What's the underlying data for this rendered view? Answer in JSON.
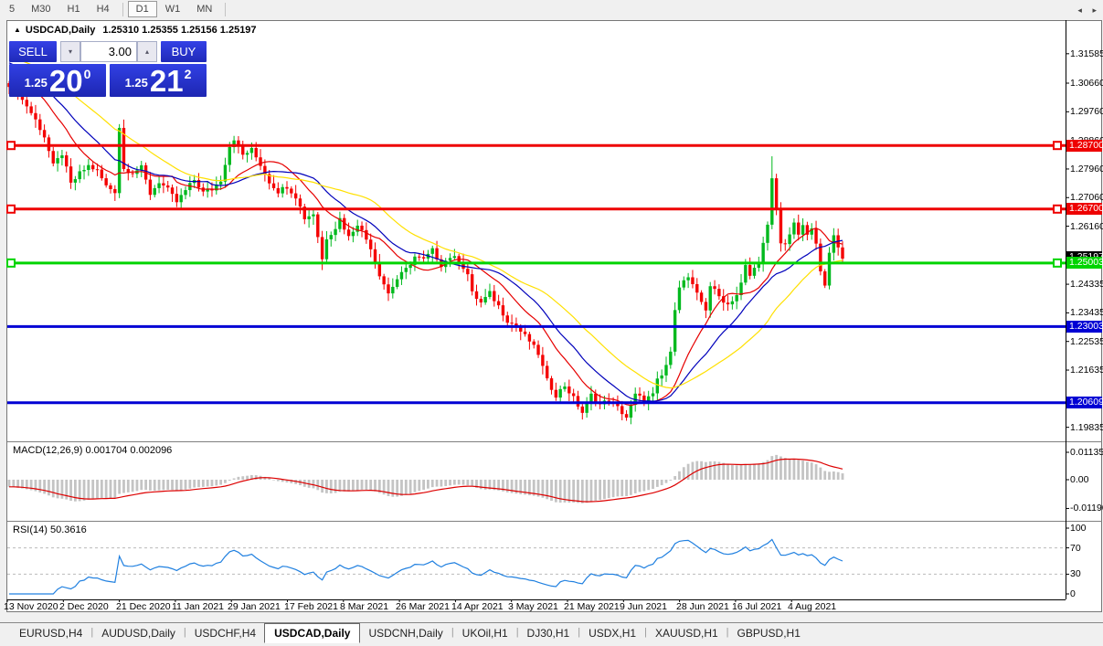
{
  "toolbar": {
    "items": [
      {
        "label": "5"
      },
      {
        "label": "M30"
      },
      {
        "label": "H1"
      },
      {
        "label": "H4"
      },
      {
        "separator": true
      },
      {
        "label": "D1",
        "active": true
      },
      {
        "label": "W1"
      },
      {
        "label": "MN"
      },
      {
        "separator": true
      }
    ]
  },
  "chart": {
    "title": "USDCAD,Daily",
    "ohlc": "1.25310 1.25355 1.25156 1.25197",
    "trade_panel": {
      "sell_label": "SELL",
      "buy_label": "BUY",
      "volume": "3.00",
      "down_glyph": "▾",
      "up_glyph": "▴",
      "sell_price": {
        "prefix": "1.25",
        "big": "20",
        "sup": "0"
      },
      "buy_price": {
        "prefix": "1.25",
        "big": "21",
        "sup": "2"
      }
    }
  },
  "chart_data": {
    "type": "candlestick",
    "symbol": "USDCAD",
    "timeframe": "Daily",
    "bars": 190,
    "y_ticks": [
      "1.31585",
      "1.30660",
      "1.29760",
      "1.28860",
      "1.27960",
      "1.27060",
      "1.26160",
      "1.24335",
      "1.23435",
      "1.22535",
      "1.21635",
      "1.19835"
    ],
    "date_labels": [
      "13 Nov 2020",
      "2 Dec 2020",
      "21 Dec 2020",
      "11 Jan 2021",
      "29 Jan 2021",
      "17 Feb 2021",
      "8 Mar 2021",
      "26 Mar 2021",
      "14 Apr 2021",
      "3 May 2021",
      "21 May 2021",
      "9 Jun 2021",
      "28 Jun 2021",
      "16 Jul 2021",
      "4 Aug 2021"
    ],
    "close_keypoints": [
      [
        0,
        1.3062
      ],
      [
        2,
        1.303
      ],
      [
        4,
        1.2995
      ],
      [
        6,
        1.295
      ],
      [
        8,
        1.2898
      ],
      [
        10,
        1.2806
      ],
      [
        12,
        1.2844
      ],
      [
        14,
        1.2748
      ],
      [
        16,
        1.2782
      ],
      [
        18,
        1.2806
      ],
      [
        20,
        1.279
      ],
      [
        22,
        1.2742
      ],
      [
        24,
        1.2726
      ],
      [
        25,
        1.2928
      ],
      [
        26,
        1.2796
      ],
      [
        28,
        1.2786
      ],
      [
        30,
        1.28
      ],
      [
        32,
        1.2718
      ],
      [
        34,
        1.2756
      ],
      [
        36,
        1.273
      ],
      [
        38,
        1.2692
      ],
      [
        40,
        1.2728
      ],
      [
        42,
        1.2762
      ],
      [
        44,
        1.2722
      ],
      [
        46,
        1.2732
      ],
      [
        48,
        1.2762
      ],
      [
        50,
        1.2868
      ],
      [
        51,
        1.2892
      ],
      [
        53,
        1.284
      ],
      [
        55,
        1.2856
      ],
      [
        57,
        1.281
      ],
      [
        59,
        1.2756
      ],
      [
        61,
        1.2726
      ],
      [
        63,
        1.2742
      ],
      [
        65,
        1.271
      ],
      [
        67,
        1.2642
      ],
      [
        69,
        1.2656
      ],
      [
        71,
        1.2512
      ],
      [
        72,
        1.258
      ],
      [
        74,
        1.2612
      ],
      [
        75,
        1.264
      ],
      [
        77,
        1.2582
      ],
      [
        79,
        1.2625
      ],
      [
        82,
        1.255
      ],
      [
        84,
        1.2465
      ],
      [
        86,
        1.2405
      ],
      [
        88,
        1.245
      ],
      [
        90,
        1.248
      ],
      [
        92,
        1.252
      ],
      [
        94,
        1.251
      ],
      [
        96,
        1.254
      ],
      [
        98,
        1.2495
      ],
      [
        100,
        1.252
      ],
      [
        102,
        1.251
      ],
      [
        104,
        1.2465
      ],
      [
        105,
        1.2405
      ],
      [
        107,
        1.2375
      ],
      [
        109,
        1.2405
      ],
      [
        111,
        1.2365
      ],
      [
        113,
        1.232
      ],
      [
        115,
        1.23
      ],
      [
        116,
        1.2285
      ],
      [
        118,
        1.2255
      ],
      [
        120,
        1.2215
      ],
      [
        122,
        1.213
      ],
      [
        124,
        1.2085
      ],
      [
        126,
        1.2115
      ],
      [
        128,
        1.2075
      ],
      [
        130,
        1.203
      ],
      [
        132,
        1.2085
      ],
      [
        134,
        1.2055
      ],
      [
        136,
        1.207
      ],
      [
        138,
        1.2045
      ],
      [
        140,
        1.2015
      ],
      [
        142,
        1.2085
      ],
      [
        144,
        1.207
      ],
      [
        146,
        1.2085
      ],
      [
        147,
        1.213
      ],
      [
        148,
        1.2145
      ],
      [
        150,
        1.2215
      ],
      [
        151,
        1.236
      ],
      [
        152,
        1.243
      ],
      [
        154,
        1.2455
      ],
      [
        156,
        1.24
      ],
      [
        158,
        1.2355
      ],
      [
        159,
        1.243
      ],
      [
        161,
        1.2395
      ],
      [
        163,
        1.237
      ],
      [
        165,
        1.24
      ],
      [
        166,
        1.2435
      ],
      [
        167,
        1.249
      ],
      [
        168,
        1.246
      ],
      [
        170,
        1.2505
      ],
      [
        171,
        1.256
      ],
      [
        172,
        1.2615
      ],
      [
        173,
        1.2762
      ],
      [
        174,
        1.2672
      ],
      [
        175,
        1.256
      ],
      [
        176,
        1.2565
      ],
      [
        177,
        1.2592
      ],
      [
        178,
        1.262
      ],
      [
        179,
        1.2592
      ],
      [
        180,
        1.2612
      ],
      [
        181,
        1.259
      ],
      [
        182,
        1.2606
      ],
      [
        183,
        1.2556
      ],
      [
        184,
        1.2482
      ],
      [
        185,
        1.2436
      ],
      [
        186,
        1.2526
      ],
      [
        187,
        1.2584
      ],
      [
        188,
        1.255
      ],
      [
        189,
        1.252
      ]
    ],
    "wick_overrides": [
      {
        "i": 173,
        "high": 1.2836
      },
      {
        "i": 130,
        "low": 1.2008
      },
      {
        "i": 140,
        "low": 1.2004
      },
      {
        "i": 71,
        "low": 1.2478
      }
    ],
    "price_lines": [
      {
        "price": 1.287,
        "label": "1.28700",
        "color": "#ee0000",
        "markers": true
      },
      {
        "price": 1.267,
        "label": "1.26700",
        "color": "#ee0000",
        "markers": true
      },
      {
        "price": 1.25003,
        "label": "1.25003",
        "color": "#00d400",
        "markers": true
      },
      {
        "price": 1.23003,
        "label": "1.23003",
        "color": "#0000d4",
        "markers": false
      },
      {
        "price": 1.20609,
        "label": "1.20609",
        "color": "#0000d4",
        "markers": false
      }
    ],
    "current_price": {
      "label": "1.25197",
      "value": 1.25197,
      "bg": "#000000"
    },
    "ma_lines": [
      {
        "period": 13,
        "color": "#e60000"
      },
      {
        "period": 21,
        "color": "#0000bb"
      },
      {
        "period": 34,
        "color": "#ffe000"
      }
    ],
    "macd": {
      "label": "MACD(12,26,9)",
      "values": "0.001704 0.002096",
      "fast": 12,
      "slow": 26,
      "signal": 9,
      "ticks": [
        {
          "label": "0.01135",
          "v": 0.01135
        },
        {
          "label": "0.00",
          "v": 0
        },
        {
          "label": "-0.01190",
          "v": -0.0119
        }
      ]
    },
    "rsi": {
      "label": "RSI(14)",
      "value": "50.3616",
      "period": 14,
      "levels": [
        70,
        30
      ],
      "ticks": [
        {
          "label": "100",
          "v": 100
        },
        {
          "label": "70",
          "v": 70
        },
        {
          "label": "30",
          "v": 30
        },
        {
          "label": "0",
          "v": 0
        }
      ]
    },
    "colors": {
      "bull": "#00b91e",
      "bear": "#f40000",
      "macd_hist": "#c4c4c4",
      "macd_signal": "#dd0000",
      "rsi_line": "#2080e0",
      "rsi_level": "#bbbbbb",
      "axis": "#000000",
      "separator": "#808080"
    }
  },
  "tabs": {
    "items": [
      {
        "label": "EURUSD,H4"
      },
      {
        "label": "AUDUSD,Daily"
      },
      {
        "label": "USDCHF,H4"
      },
      {
        "label": "USDCAD,Daily",
        "active": true
      },
      {
        "label": "USDCNH,Daily"
      },
      {
        "label": "UKOil,H1"
      },
      {
        "label": "DJ30,H1"
      },
      {
        "label": "USDX,H1"
      },
      {
        "label": "XAUUSD,H1"
      },
      {
        "label": "GBPUSD,H1"
      }
    ],
    "scroll_left": "◂",
    "scroll_right": "▸"
  }
}
